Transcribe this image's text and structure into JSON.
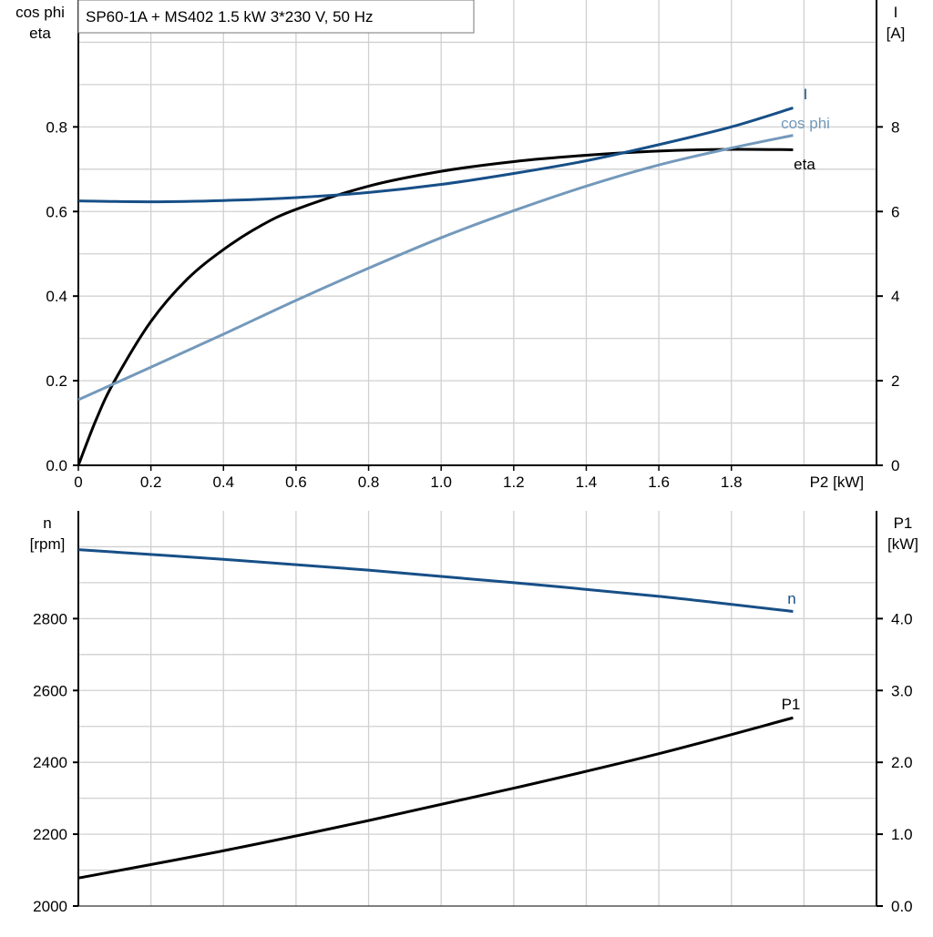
{
  "title": "SP60-1A + MS402   1.5 kW   3*230 V, 50 Hz",
  "chart_data": [
    {
      "type": "line",
      "xlabel": "P2 [kW]",
      "xlim": [
        0,
        2.2
      ],
      "xticks": [
        "0",
        "0.2",
        "0.4",
        "0.6",
        "0.8",
        "1.0",
        "1.2",
        "1.4",
        "1.6",
        "1.8"
      ],
      "ylabel_left": [
        "cos phi",
        "eta"
      ],
      "ylim_left": [
        0,
        1.1
      ],
      "yticks_left": [
        "0.0",
        "0.2",
        "0.4",
        "0.6",
        "0.8"
      ],
      "ylabel_right": [
        "I",
        "[A]"
      ],
      "ylim_right": [
        0,
        11
      ],
      "yticks_right": [
        "0",
        "2",
        "4",
        "6",
        "8"
      ],
      "grid": true,
      "series": [
        {
          "name": "eta",
          "axis": "left",
          "color": "#000000",
          "x": [
            0,
            0.05,
            0.1,
            0.2,
            0.3,
            0.4,
            0.5,
            0.6,
            0.8,
            1.0,
            1.2,
            1.4,
            1.6,
            1.8,
            1.97
          ],
          "y": [
            0,
            0.11,
            0.2,
            0.34,
            0.44,
            0.51,
            0.565,
            0.605,
            0.66,
            0.695,
            0.718,
            0.733,
            0.743,
            0.747,
            0.746
          ]
        },
        {
          "name": "I",
          "axis": "right",
          "color": "#174f87",
          "x": [
            0,
            0.2,
            0.4,
            0.6,
            0.8,
            1.0,
            1.2,
            1.4,
            1.6,
            1.8,
            1.97
          ],
          "y": [
            6.25,
            6.23,
            6.26,
            6.33,
            6.45,
            6.64,
            6.9,
            7.2,
            7.58,
            8.0,
            8.45
          ]
        },
        {
          "name": "cos phi",
          "axis": "left",
          "color": "#7399bb",
          "x": [
            0,
            0.2,
            0.4,
            0.6,
            0.8,
            1.0,
            1.2,
            1.4,
            1.6,
            1.8,
            1.97
          ],
          "y": [
            0.155,
            0.232,
            0.31,
            0.39,
            0.466,
            0.538,
            0.602,
            0.66,
            0.71,
            0.75,
            0.78
          ]
        }
      ]
    },
    {
      "type": "line",
      "xlim": [
        0,
        2.2
      ],
      "ylabel_left": [
        "n",
        "[rpm]"
      ],
      "ylim_left": [
        2000,
        3100
      ],
      "yticks_left": [
        "2000",
        "2200",
        "2400",
        "2600",
        "2800"
      ],
      "ylabel_right": [
        "P1",
        "[kW]"
      ],
      "ylim_right": [
        0,
        5.5
      ],
      "yticks_right": [
        "0.0",
        "1.0",
        "2.0",
        "3.0",
        "4.0"
      ],
      "grid": true,
      "series": [
        {
          "name": "n",
          "axis": "left",
          "color": "#174f87",
          "x": [
            0,
            0.4,
            0.8,
            1.2,
            1.6,
            1.97
          ],
          "y": [
            2992,
            2965,
            2935,
            2900,
            2862,
            2820
          ]
        },
        {
          "name": "P1",
          "axis": "right",
          "color": "#000000",
          "x": [
            0,
            0.4,
            0.8,
            1.2,
            1.6,
            1.97
          ],
          "y": [
            0.39,
            0.77,
            1.19,
            1.64,
            2.12,
            2.62
          ]
        }
      ]
    }
  ]
}
